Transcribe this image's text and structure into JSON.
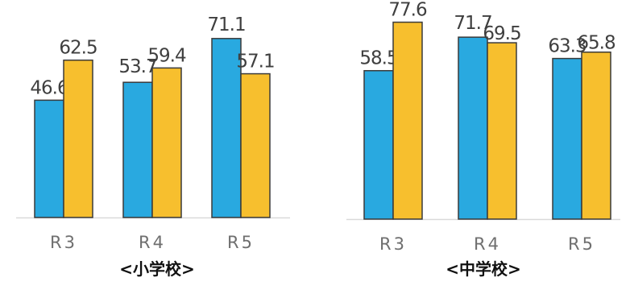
{
  "chart_data": [
    {
      "type": "bar",
      "title": "<小学校>",
      "categories": [
        "R3",
        "R4",
        "R5"
      ],
      "series": [
        {
          "values": [
            46.6,
            53.7,
            71.1
          ]
        },
        {
          "values": [
            62.5,
            59.4,
            57.1
          ]
        }
      ],
      "ylim": [
        0,
        80
      ],
      "grid": false,
      "legend": "none",
      "colors": [
        "#29a9e0",
        "#f7bf2e"
      ]
    },
    {
      "type": "bar",
      "title": "<中学校>",
      "categories": [
        "R3",
        "R4",
        "R5"
      ],
      "series": [
        {
          "values": [
            58.5,
            71.7,
            63.3
          ]
        },
        {
          "values": [
            77.6,
            69.5,
            65.8
          ]
        }
      ],
      "ylim": [
        0,
        80
      ],
      "grid": false,
      "legend": "none",
      "colors": [
        "#29a9e0",
        "#f7bf2e"
      ]
    }
  ]
}
